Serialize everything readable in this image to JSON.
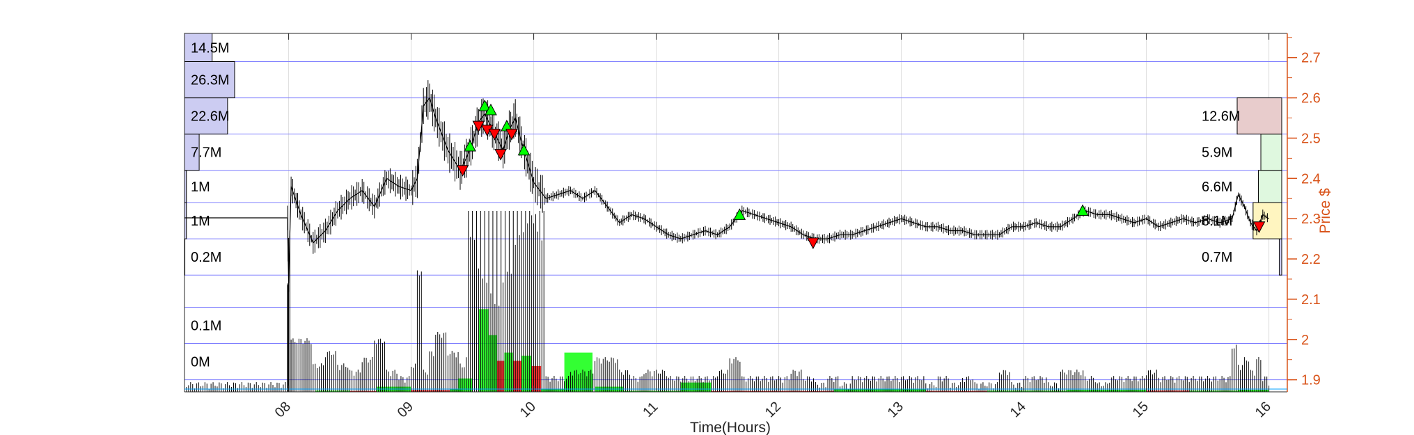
{
  "chart_data": {
    "type": "candlestick-volume-profile",
    "xlabel": "Time(Hours)",
    "ylabel_right": "Price $",
    "xlim": [
      7.15,
      16.15
    ],
    "ylim": [
      1.87,
      2.76
    ],
    "x_ticks": [
      8,
      9,
      10,
      11,
      12,
      13,
      14,
      15,
      16
    ],
    "x_tick_labels": [
      "08",
      "09",
      "10",
      "11",
      "12",
      "13",
      "14",
      "15",
      "16"
    ],
    "y_ticks": [
      1.9,
      2.0,
      2.1,
      2.2,
      2.3,
      2.4,
      2.5,
      2.6,
      2.7
    ],
    "y_tick_labels": [
      "1.9",
      "2",
      "2.1",
      "2.2",
      "2.3",
      "2.4",
      "2.5",
      "2.6",
      "2.7"
    ],
    "colors": {
      "price_axis": "#d95319",
      "band_line": "#7f7fff",
      "up": "#00ff00",
      "down": "#ff0000",
      "profile_left": "#ccccf2",
      "grid": "#dcdcdc"
    },
    "price_bands": [
      1.87,
      1.9,
      1.99,
      2.08,
      2.16,
      2.25,
      2.34,
      2.42,
      2.51,
      2.6,
      2.69,
      2.76
    ],
    "left_profile": [
      {
        "label": "0M",
        "low": 1.9,
        "high": 1.99,
        "volume": 0.0
      },
      {
        "label": "0.1M",
        "low": 1.99,
        "high": 2.08,
        "volume": 0.1
      },
      {
        "label": "",
        "low": 2.08,
        "high": 2.16,
        "volume": 0.0
      },
      {
        "label": "0.2M",
        "low": 2.16,
        "high": 2.25,
        "volume": 0.2
      },
      {
        "label": "1M",
        "low": 2.25,
        "high": 2.34,
        "volume": 1.0
      },
      {
        "label": "1M",
        "low": 2.34,
        "high": 2.42,
        "volume": 1.0
      },
      {
        "label": "7.7M",
        "low": 2.42,
        "high": 2.51,
        "volume": 7.7
      },
      {
        "label": "22.6M",
        "low": 2.51,
        "high": 2.6,
        "volume": 22.6
      },
      {
        "label": "26.3M",
        "low": 2.6,
        "high": 2.69,
        "volume": 26.3
      },
      {
        "label": "14.5M",
        "low": 2.69,
        "high": 2.76,
        "volume": 14.5
      }
    ],
    "right_profile": [
      {
        "label": "0.7M",
        "low": 2.16,
        "high": 2.25,
        "volume": 0.7,
        "color": "#ccccf2"
      },
      {
        "label": "8.1M",
        "low": 2.25,
        "high": 2.34,
        "volume": 8.1,
        "color": "#fff5c0"
      },
      {
        "label": "6.6M",
        "low": 2.34,
        "high": 2.42,
        "volume": 6.6,
        "color": "#dff8df"
      },
      {
        "label": "5.9M",
        "low": 2.42,
        "high": 2.51,
        "volume": 5.9,
        "color": "#dff8df"
      },
      {
        "label": "12.6M",
        "low": 2.51,
        "high": 2.6,
        "volume": 12.6,
        "color": "#e8cccc"
      }
    ],
    "price_series": [
      [
        7.15,
        2.302
      ],
      [
        7.5,
        2.302
      ],
      [
        7.99,
        2.302
      ],
      [
        8.0,
        2.14
      ],
      [
        8.02,
        2.38
      ],
      [
        8.1,
        2.31
      ],
      [
        8.2,
        2.24
      ],
      [
        8.3,
        2.27
      ],
      [
        8.4,
        2.32
      ],
      [
        8.5,
        2.35
      ],
      [
        8.6,
        2.37
      ],
      [
        8.7,
        2.33
      ],
      [
        8.8,
        2.4
      ],
      [
        8.9,
        2.38
      ],
      [
        9.0,
        2.37
      ],
      [
        9.05,
        2.4
      ],
      [
        9.1,
        2.58
      ],
      [
        9.15,
        2.6
      ],
      [
        9.2,
        2.55
      ],
      [
        9.3,
        2.47
      ],
      [
        9.4,
        2.42
      ],
      [
        9.45,
        2.45
      ],
      [
        9.5,
        2.49
      ],
      [
        9.55,
        2.54
      ],
      [
        9.6,
        2.56
      ],
      [
        9.65,
        2.53
      ],
      [
        9.7,
        2.5
      ],
      [
        9.75,
        2.47
      ],
      [
        9.8,
        2.52
      ],
      [
        9.85,
        2.55
      ],
      [
        9.9,
        2.49
      ],
      [
        9.95,
        2.44
      ],
      [
        10.0,
        2.39
      ],
      [
        10.1,
        2.35
      ],
      [
        10.2,
        2.36
      ],
      [
        10.3,
        2.37
      ],
      [
        10.4,
        2.35
      ],
      [
        10.5,
        2.37
      ],
      [
        10.6,
        2.33
      ],
      [
        10.7,
        2.29
      ],
      [
        10.8,
        2.31
      ],
      [
        10.9,
        2.3
      ],
      [
        11.0,
        2.28
      ],
      [
        11.1,
        2.26
      ],
      [
        11.2,
        2.25
      ],
      [
        11.3,
        2.26
      ],
      [
        11.4,
        2.27
      ],
      [
        11.5,
        2.26
      ],
      [
        11.6,
        2.28
      ],
      [
        11.7,
        2.32
      ],
      [
        11.8,
        2.31
      ],
      [
        11.9,
        2.3
      ],
      [
        12.0,
        2.29
      ],
      [
        12.1,
        2.28
      ],
      [
        12.2,
        2.26
      ],
      [
        12.3,
        2.25
      ],
      [
        12.4,
        2.25
      ],
      [
        12.5,
        2.26
      ],
      [
        12.6,
        2.26
      ],
      [
        12.7,
        2.27
      ],
      [
        12.8,
        2.28
      ],
      [
        12.9,
        2.29
      ],
      [
        13.0,
        2.3
      ],
      [
        13.1,
        2.29
      ],
      [
        13.2,
        2.28
      ],
      [
        13.3,
        2.28
      ],
      [
        13.4,
        2.27
      ],
      [
        13.5,
        2.27
      ],
      [
        13.6,
        2.26
      ],
      [
        13.7,
        2.26
      ],
      [
        13.8,
        2.26
      ],
      [
        13.9,
        2.28
      ],
      [
        14.0,
        2.28
      ],
      [
        14.1,
        2.29
      ],
      [
        14.2,
        2.28
      ],
      [
        14.3,
        2.28
      ],
      [
        14.4,
        2.3
      ],
      [
        14.5,
        2.32
      ],
      [
        14.6,
        2.31
      ],
      [
        14.7,
        2.31
      ],
      [
        14.8,
        2.3
      ],
      [
        14.9,
        2.29
      ],
      [
        15.0,
        2.3
      ],
      [
        15.1,
        2.28
      ],
      [
        15.2,
        2.29
      ],
      [
        15.3,
        2.3
      ],
      [
        15.4,
        2.29
      ],
      [
        15.5,
        2.3
      ],
      [
        15.6,
        2.29
      ],
      [
        15.7,
        2.3
      ],
      [
        15.75,
        2.36
      ],
      [
        15.8,
        2.33
      ],
      [
        15.85,
        2.29
      ],
      [
        15.9,
        2.27
      ],
      [
        15.95,
        2.31
      ],
      [
        16.0,
        2.3
      ]
    ],
    "buy_signals": [
      [
        9.48,
        2.48
      ],
      [
        9.6,
        2.58
      ],
      [
        9.65,
        2.57
      ],
      [
        9.78,
        2.53
      ],
      [
        9.92,
        2.47
      ],
      [
        11.68,
        2.31
      ],
      [
        14.48,
        2.32
      ]
    ],
    "sell_signals": [
      [
        9.42,
        2.42
      ],
      [
        9.55,
        2.53
      ],
      [
        9.62,
        2.52
      ],
      [
        9.68,
        2.51
      ],
      [
        9.73,
        2.46
      ],
      [
        9.82,
        2.51
      ],
      [
        12.28,
        2.24
      ],
      [
        15.92,
        2.28
      ]
    ],
    "volume_blocks": [
      {
        "x0": 8.22,
        "x1": 8.5,
        "direction": "up",
        "height": 0.006
      },
      {
        "x0": 8.5,
        "x1": 8.72,
        "direction": "down",
        "height": 0.004
      },
      {
        "x0": 8.72,
        "x1": 9.0,
        "direction": "up",
        "height": 0.025
      },
      {
        "x0": 9.0,
        "x1": 9.32,
        "direction": "down",
        "height": 0.008
      },
      {
        "x0": 9.32,
        "x1": 9.42,
        "direction": "up",
        "height": 0.015
      },
      {
        "x0": 9.38,
        "x1": 9.5,
        "direction": "up",
        "height": 0.065
      },
      {
        "x0": 9.55,
        "x1": 9.63,
        "direction": "up",
        "height": 0.4
      },
      {
        "x0": 9.63,
        "x1": 9.7,
        "direction": "up",
        "height": 0.275
      },
      {
        "x0": 9.7,
        "x1": 9.76,
        "direction": "down",
        "height": 0.15
      },
      {
        "x0": 9.76,
        "x1": 9.83,
        "direction": "up",
        "height": 0.19
      },
      {
        "x0": 9.83,
        "x1": 9.9,
        "direction": "down",
        "height": 0.15
      },
      {
        "x0": 9.9,
        "x1": 9.98,
        "direction": "up",
        "height": 0.175
      },
      {
        "x0": 9.98,
        "x1": 10.06,
        "direction": "down",
        "height": 0.125
      },
      {
        "x0": 10.06,
        "x1": 10.25,
        "direction": "up",
        "height": 0.012
      },
      {
        "x0": 10.25,
        "x1": 10.48,
        "direction": "up",
        "height": 0.19
      },
      {
        "x0": 10.5,
        "x1": 10.73,
        "direction": "up",
        "height": 0.025
      },
      {
        "x0": 10.73,
        "x1": 11.2,
        "direction": "up",
        "height": 0.005
      },
      {
        "x0": 11.2,
        "x1": 11.45,
        "direction": "up",
        "height": 0.045
      },
      {
        "x0": 11.45,
        "x1": 11.75,
        "direction": "down",
        "height": 0.004
      },
      {
        "x0": 11.75,
        "x1": 12.45,
        "direction": "down",
        "height": 0.004
      },
      {
        "x0": 12.45,
        "x1": 13.2,
        "direction": "up",
        "height": 0.014
      },
      {
        "x0": 13.2,
        "x1": 13.7,
        "direction": "down",
        "height": 0.004
      },
      {
        "x0": 13.7,
        "x1": 14.35,
        "direction": "up",
        "height": 0.006
      },
      {
        "x0": 14.35,
        "x1": 15.0,
        "direction": "up",
        "height": 0.01
      },
      {
        "x0": 15.0,
        "x1": 15.35,
        "direction": "down",
        "height": 0.006
      },
      {
        "x0": 15.35,
        "x1": 15.75,
        "direction": "up",
        "height": 0.006
      },
      {
        "x0": 15.75,
        "x1": 16.0,
        "direction": "up",
        "height": 0.01
      }
    ]
  }
}
